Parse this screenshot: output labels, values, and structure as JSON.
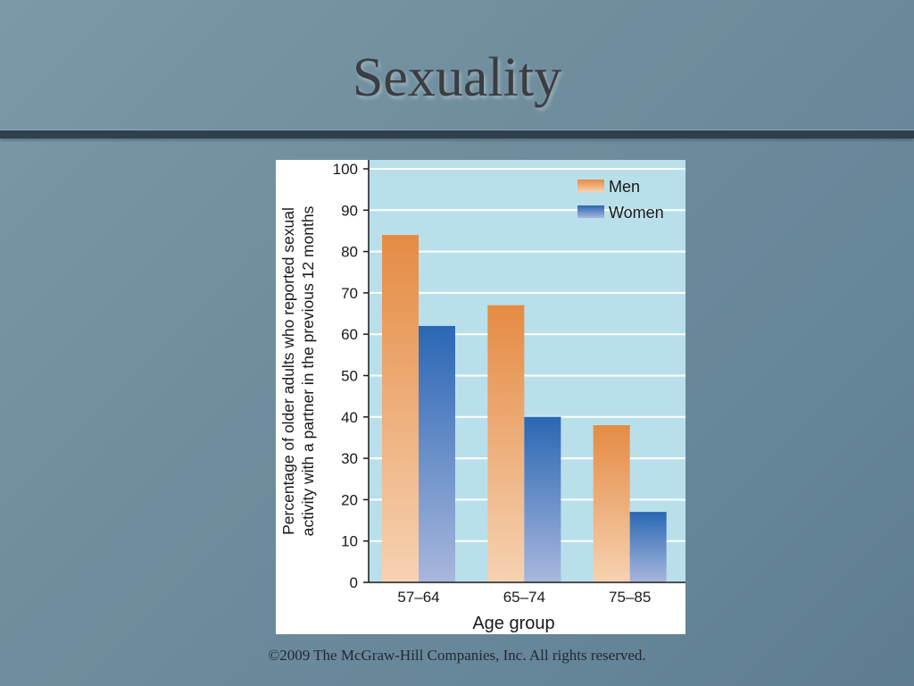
{
  "slide": {
    "title": "Sexuality",
    "footer": "©2009 The McGraw-Hill Companies, Inc. All rights reserved."
  },
  "colors": {
    "plot_background": "#b9e0ea",
    "men_top": "#e58b43",
    "men_bottom": "#f6d2b2",
    "women_top": "#2a67b4",
    "women_bottom": "#a9b7dd"
  },
  "chart_data": {
    "type": "bar",
    "title": "",
    "xlabel": "Age group",
    "ylabel_lines": [
      "Percentage of older adults who reported sexual",
      "activity with a partner in the previous 12 months"
    ],
    "categories": [
      "57–64",
      "65–74",
      "75–85"
    ],
    "series": [
      {
        "name": "Men",
        "values": [
          84,
          67,
          38
        ]
      },
      {
        "name": "Women",
        "values": [
          62,
          40,
          17
        ]
      }
    ],
    "ylim": [
      0,
      100
    ],
    "yticks": [
      0,
      10,
      20,
      30,
      40,
      50,
      60,
      70,
      80,
      90,
      100
    ],
    "grid": true,
    "legend_position": "top-right"
  }
}
